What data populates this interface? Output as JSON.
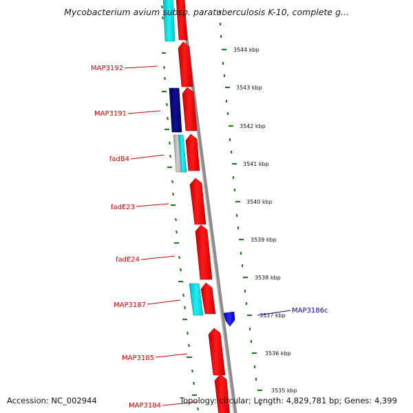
{
  "title": "Mycobacterium avium subsp. paratuberculosis K-10, complete g...",
  "footer": {
    "accession": "Accession: NC_002944",
    "summary": "Topology: circular; Length: 4,829,781 bp; Genes: 4,399"
  },
  "colors": {
    "forward_gene": "#ff0000",
    "forward_gene_edge": "#b00000",
    "reverse_gene": "#1a1acc",
    "rna_cyan": "#00e5e5",
    "dark_blue": "#0a0a80",
    "grey_feature": "#b8b8b8",
    "backbone": "#8a8a8a",
    "tick_green": "#1a7a1a",
    "label_red": "#cc0000",
    "label_blue": "#0000aa"
  },
  "scale_labels": [
    "3544 kbp",
    "3543 kbp",
    "3542 kbp",
    "3541 kbp",
    "3540 kbp",
    "3539 kbp",
    "3538 kbp",
    "3537 kbp",
    "3536 kbp",
    "3535 kbp"
  ],
  "gene_labels": [
    {
      "text": "MAP3192",
      "strand": "forward"
    },
    {
      "text": "MAP3191",
      "strand": "forward"
    },
    {
      "text": "fadB4",
      "strand": "forward"
    },
    {
      "text": "fadE23",
      "strand": "forward"
    },
    {
      "text": "fadE24",
      "strand": "forward"
    },
    {
      "text": "MAP3187",
      "strand": "forward"
    },
    {
      "text": "MAP3185",
      "strand": "forward"
    },
    {
      "text": "MAP3184",
      "strand": "forward"
    },
    {
      "text": "MAP3186c",
      "strand": "reverse"
    }
  ]
}
